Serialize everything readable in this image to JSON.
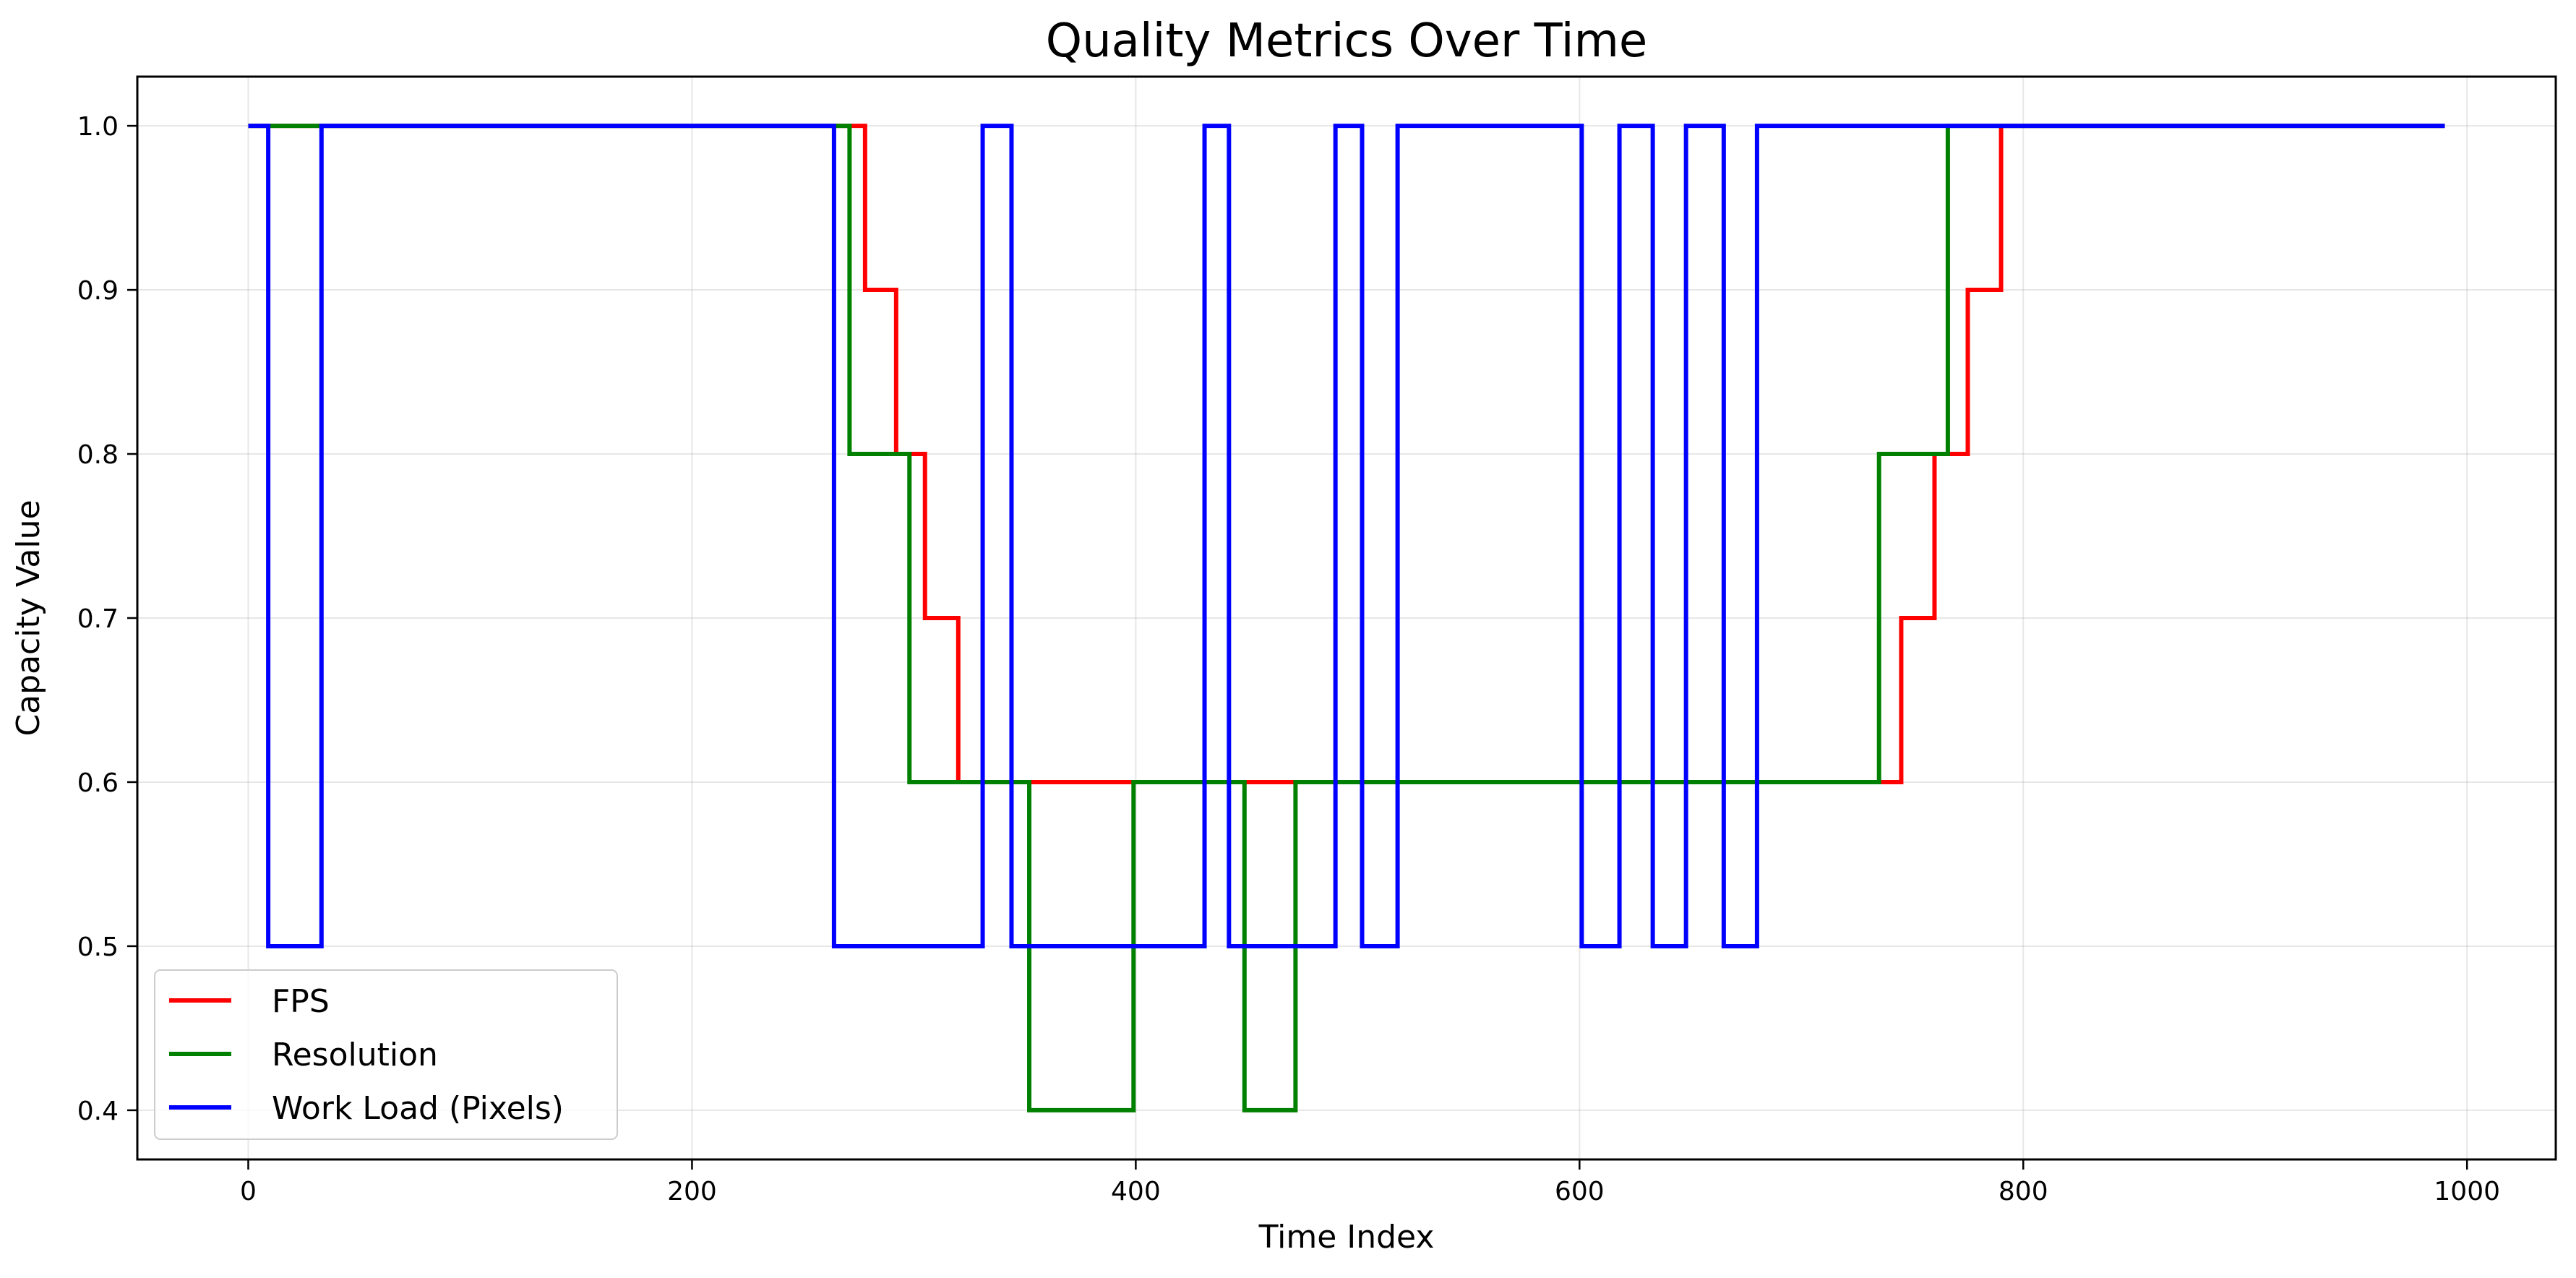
{
  "chart_data": {
    "type": "line",
    "step": "post",
    "title": "Quality Metrics Over Time",
    "xlabel": "Time Index",
    "ylabel": "Capacity Value",
    "xlim": [
      -50,
      1040
    ],
    "ylim": [
      0.37,
      1.03
    ],
    "xticks": [
      0,
      200,
      400,
      600,
      800,
      1000
    ],
    "xtick_labels": [
      "0",
      "200",
      "400",
      "600",
      "800",
      "1000"
    ],
    "yticks": [
      0.4,
      0.5,
      0.6,
      0.7,
      0.8,
      0.9,
      1.0
    ],
    "ytick_labels": [
      "0.4",
      "0.5",
      "0.6",
      "0.7",
      "0.8",
      "0.9",
      "1.0"
    ],
    "grid": true,
    "legend_position": "lower-left",
    "series": [
      {
        "name": "FPS",
        "color": "#ff0000",
        "x": [
          0,
          278,
          292,
          305,
          320,
          740,
          745,
          760,
          775,
          790,
          990
        ],
        "y": [
          1.0,
          0.9,
          0.8,
          0.7,
          0.6,
          0.6,
          0.7,
          0.8,
          0.9,
          1.0,
          1.0
        ]
      },
      {
        "name": "Resolution",
        "color": "#008000",
        "x": [
          0,
          271,
          298,
          352,
          399,
          449,
          472,
          735,
          766,
          990
        ],
        "y": [
          1.0,
          0.8,
          0.6,
          0.4,
          0.6,
          0.4,
          0.6,
          0.8,
          1.0,
          1.0
        ]
      },
      {
        "name": "Work Load (Pixels)",
        "color": "#0000ff",
        "x": [
          0,
          9,
          33,
          264,
          331,
          344,
          431,
          442,
          490,
          502,
          518,
          601,
          618,
          633,
          648,
          665,
          680,
          990
        ],
        "y": [
          1.0,
          0.5,
          1.0,
          0.5,
          1.0,
          0.5,
          1.0,
          0.5,
          1.0,
          0.5,
          1.0,
          0.5,
          1.0,
          0.5,
          1.0,
          0.5,
          1.0,
          1.0
        ]
      }
    ]
  }
}
